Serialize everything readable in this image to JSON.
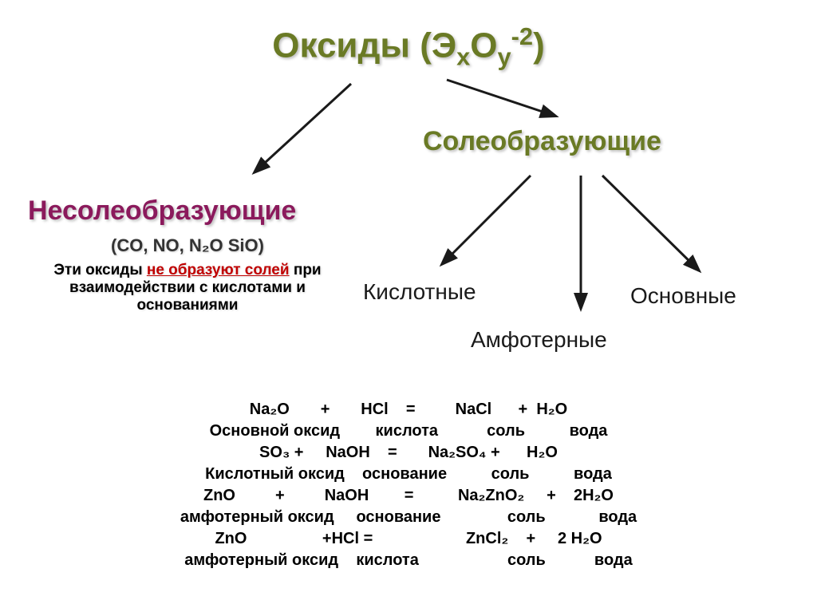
{
  "title": {
    "text": "Оксиды (Э",
    "sub1": "х",
    "mid": "О",
    "sub2": "у",
    "sup": "-2",
    "end": ")",
    "color": "#6a7a25",
    "fontsize": 44
  },
  "branches": {
    "left": {
      "heading": "Несолеобразующие",
      "color": "#8b1a5c",
      "fontsize": 34,
      "examples": "(CO, NO, N₂O SiO)",
      "note_pre": "Эти оксиды ",
      "note_red": "не образуют солей",
      "note_post": " при взаимодействии с кислотами и основаниями"
    },
    "right": {
      "heading": "Солеобразующие",
      "color": "#6a7a25",
      "fontsize": 34,
      "cats": {
        "a": "Кислотные",
        "b": "Амфотерные",
        "c": "Основные"
      }
    }
  },
  "reactions": {
    "fontsize": 20,
    "lines": [
      "Na₂O       +       HCl    =         NaCl      +  H₂O",
      "Основной оксид        кислота           соль          вода",
      "SO₃ +     NaOH    =       Na₂SO₄ +      H₂O",
      "Кислотный оксид    основание          соль          вода",
      "ZnO         +         NaOH        =          Na₂ZnO₂     +    2H₂O",
      "амфотерный оксид     основание               соль            вода",
      "ZnO                 +HCl =                     ZnCl₂    +     2 H₂O",
      "амфотерный оксид    кислота                    соль           вода"
    ]
  },
  "arrows": {
    "stroke": "#1a1a1a",
    "width": 3
  }
}
